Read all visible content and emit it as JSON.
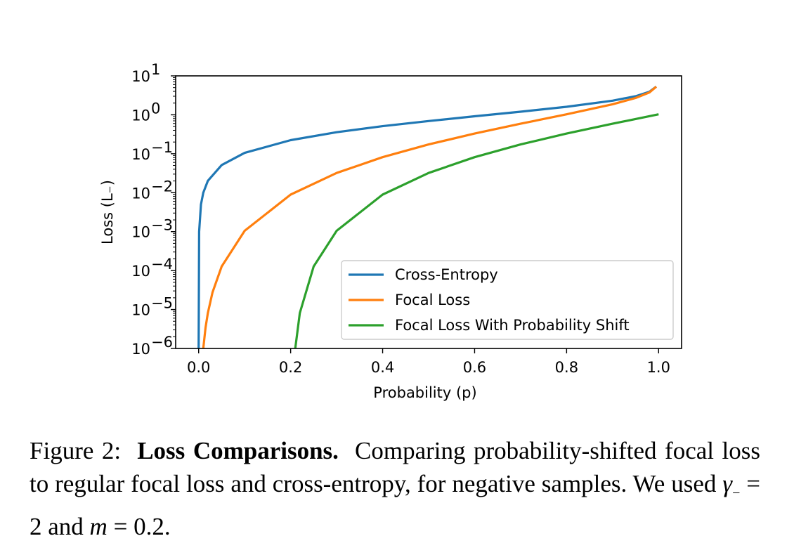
{
  "chart_data": {
    "type": "line",
    "xlabel": "Probability (p)",
    "ylabel": "Loss (L₋)",
    "xlim": [
      -0.05,
      1.05
    ],
    "ylim": [
      1e-06,
      10
    ],
    "yscale": "log",
    "grid": false,
    "legend_position": "lower-right",
    "x_ticks": [
      "0.0",
      "0.2",
      "0.4",
      "0.6",
      "0.8",
      "1.0"
    ],
    "y_ticks": [
      {
        "base": "10",
        "exp": "1"
      },
      {
        "base": "10",
        "exp": "0"
      },
      {
        "base": "10",
        "exp": "−1"
      },
      {
        "base": "10",
        "exp": "−2"
      },
      {
        "base": "10",
        "exp": "−3"
      },
      {
        "base": "10",
        "exp": "−4"
      },
      {
        "base": "10",
        "exp": "−5"
      },
      {
        "base": "10",
        "exp": "−6"
      }
    ],
    "series": [
      {
        "name": "Cross-Entropy",
        "color": "#1f77b4",
        "x": [
          0.0,
          0.001,
          0.005,
          0.01,
          0.02,
          0.05,
          0.1,
          0.2,
          0.3,
          0.4,
          0.5,
          0.6,
          0.7,
          0.8,
          0.9,
          0.95,
          0.98,
          0.995
        ],
        "y": [
          1e-06,
          0.001,
          0.005,
          0.01,
          0.0202,
          0.0513,
          0.1054,
          0.2231,
          0.3567,
          0.5108,
          0.6931,
          0.9163,
          1.204,
          1.609,
          2.303,
          2.996,
          3.912,
          5.298
        ]
      },
      {
        "name": "Focal Loss",
        "color": "#ff7f0e",
        "x": [
          0.01,
          0.015,
          0.02,
          0.03,
          0.05,
          0.1,
          0.2,
          0.3,
          0.4,
          0.5,
          0.6,
          0.7,
          0.8,
          0.9,
          0.95,
          0.98,
          0.995
        ],
        "y": [
          1e-06,
          3.4e-06,
          8.1e-06,
          2.74e-05,
          0.000128,
          0.00105,
          0.00893,
          0.0321,
          0.0817,
          0.1733,
          0.3299,
          0.5899,
          1.03,
          1.865,
          2.704,
          3.757,
          5.272
        ]
      },
      {
        "name": "Focal Loss With Probability Shift",
        "color": "#2ca02c",
        "x": [
          0.21,
          0.22,
          0.25,
          0.3,
          0.4,
          0.5,
          0.6,
          0.7,
          0.8,
          0.9,
          1.0
        ],
        "y": [
          1e-06,
          8.1e-06,
          0.000128,
          0.00105,
          0.00893,
          0.0321,
          0.0817,
          0.1733,
          0.3299,
          0.5899,
          1.03
        ]
      }
    ]
  },
  "caption": {
    "figure_label": "Figure 2:",
    "bold_title": "Loss Comparisons.",
    "text_1": "Comparing probability-shifted focal loss to regular focal loss and cross-entropy, for negative samples. We used",
    "gamma_sym": "γ",
    "gamma_sub": "−",
    "eq_1": " = 2 and ",
    "m_sym": "m",
    "eq_2": " = 0.2."
  }
}
